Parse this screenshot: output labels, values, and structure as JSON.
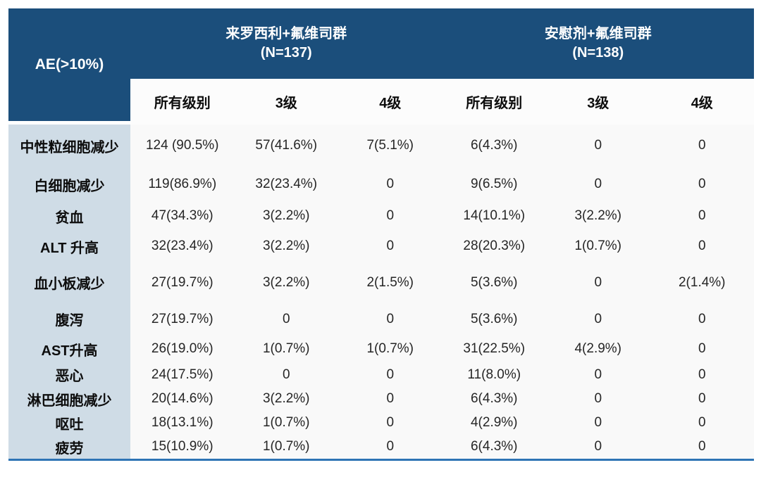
{
  "chart_data": {
    "type": "table",
    "title": "AE(>10%)",
    "header": {
      "ae_label": "AE(>10%)",
      "groups": [
        {
          "title": "来罗西利+氟维司群",
          "n": "(N=137)"
        },
        {
          "title": "安慰剂+氟维司群",
          "n": "(N=138)"
        }
      ],
      "subheaders": [
        "所有级别",
        "3级",
        "4级",
        "所有级别",
        "3级",
        "4级"
      ]
    },
    "rows": [
      {
        "label": "中性粒细胞减少",
        "values": [
          "124 (90.5%)",
          "57(41.6%)",
          "7(5.1%)",
          "6(4.3%)",
          "0",
          "0"
        ]
      },
      {
        "label": "白细胞减少",
        "values": [
          "119(86.9%)",
          "32(23.4%)",
          "0",
          "9(6.5%)",
          "0",
          "0"
        ]
      },
      {
        "label": "贫血",
        "values": [
          "47(34.3%)",
          "3(2.2%)",
          "0",
          "14(10.1%)",
          "3(2.2%)",
          "0"
        ]
      },
      {
        "label": "ALT 升高",
        "values": [
          "32(23.4%)",
          "3(2.2%)",
          "0",
          "28(20.3%)",
          "1(0.7%)",
          "0"
        ]
      },
      {
        "label": "血小板减少",
        "values": [
          "27(19.7%)",
          "3(2.2%)",
          "2(1.5%)",
          "5(3.6%)",
          "0",
          "2(1.4%)"
        ]
      },
      {
        "label": "腹泻",
        "values": [
          "27(19.7%)",
          "0",
          "0",
          "5(3.6%)",
          "0",
          "0"
        ]
      },
      {
        "label": "AST升高",
        "values": [
          "26(19.0%)",
          "1(0.7%)",
          "1(0.7%)",
          "31(22.5%)",
          "4(2.9%)",
          "0"
        ]
      },
      {
        "label": "恶心",
        "values": [
          "24(17.5%)",
          "0",
          "0",
          "11(8.0%)",
          "0",
          "0"
        ]
      },
      {
        "label": "淋巴细胞减少",
        "values": [
          "20(14.6%)",
          "3(2.2%)",
          "0",
          "6(4.3%)",
          "0",
          "0"
        ]
      },
      {
        "label": "呕吐",
        "values": [
          "18(13.1%)",
          "1(0.7%)",
          "0",
          "4(2.9%)",
          "0",
          "0"
        ]
      },
      {
        "label": "疲劳",
        "values": [
          "15(10.9%)",
          "1(0.7%)",
          "0",
          "6(4.3%)",
          "0",
          "0"
        ]
      }
    ]
  },
  "colors": {
    "header_bg": "#1b4e7b",
    "header_text": "#ffffff",
    "label_column_bg": "#cfdce6",
    "data_bg": "#f9f9f9",
    "subheader_bg": "#fcfcfc",
    "bottom_rule": "#2e74b5"
  }
}
